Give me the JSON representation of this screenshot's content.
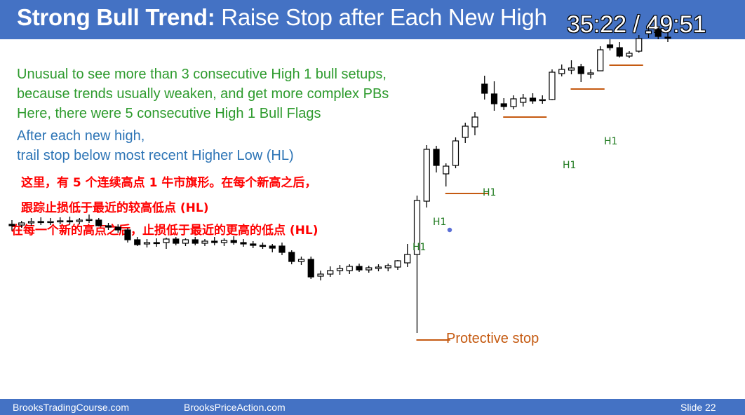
{
  "slide": {
    "title_bold": "Strong Bull Trend:",
    "title_rest": " Raise Stop after Each New High",
    "timer": "35:22 / 49:51",
    "notes_green": [
      "Unusual to see more than 3 consecutive High 1 bull setups,",
      "because trends usually weaken, and get more complex PBs",
      "Here, there were 5 consecutive High 1 Bull Flags"
    ],
    "notes_blue": [
      "After each new high,",
      "trail stop below most recent Higher Low (HL)"
    ],
    "notes_red": [
      "这里，有 5 个连续高点 1 牛市旗形。在每个新高之后，",
      "跟踪止损低于最近的较高低点 (HL)",
      "在每一个新的高点之后，止损低于最近的更高的低点 (HL)"
    ],
    "footer_left": "BrooksTradingCourse.com",
    "footer_mid": "BrooksPriceAction.com",
    "footer_right": "Slide  22"
  },
  "colors": {
    "header": "#4472c4",
    "green_text": "#2e9b2e",
    "blue_text": "#2e75b6",
    "red_text": "#ff0000",
    "stop_line": "#c55a11",
    "label_green": "#1f7a1f"
  },
  "chart_data": {
    "type": "candlestick",
    "axes_shown": false,
    "grid": false,
    "price_range": [
      0,
      500
    ],
    "bars": [
      {
        "o": 226,
        "h": 232,
        "l": 217,
        "c": 224
      },
      {
        "o": 225,
        "h": 231,
        "l": 221,
        "c": 228
      },
      {
        "o": 228,
        "h": 235,
        "l": 224,
        "c": 230
      },
      {
        "o": 230,
        "h": 236,
        "l": 225,
        "c": 229
      },
      {
        "o": 229,
        "h": 235,
        "l": 225,
        "c": 230
      },
      {
        "o": 230,
        "h": 236,
        "l": 226,
        "c": 231
      },
      {
        "o": 231,
        "h": 237,
        "l": 226,
        "c": 230
      },
      {
        "o": 230,
        "h": 235,
        "l": 226,
        "c": 232
      },
      {
        "o": 232,
        "h": 240,
        "l": 228,
        "c": 233
      },
      {
        "o": 232,
        "h": 235,
        "l": 223,
        "c": 224
      },
      {
        "o": 224,
        "h": 228,
        "l": 218,
        "c": 222
      },
      {
        "o": 222,
        "h": 226,
        "l": 214,
        "c": 218
      },
      {
        "o": 218,
        "h": 221,
        "l": 200,
        "c": 204
      },
      {
        "o": 204,
        "h": 208,
        "l": 195,
        "c": 197
      },
      {
        "o": 198,
        "h": 205,
        "l": 193,
        "c": 200
      },
      {
        "o": 200,
        "h": 206,
        "l": 194,
        "c": 199
      },
      {
        "o": 200,
        "h": 207,
        "l": 191,
        "c": 205
      },
      {
        "o": 205,
        "h": 208,
        "l": 196,
        "c": 199
      },
      {
        "o": 199,
        "h": 206,
        "l": 195,
        "c": 204
      },
      {
        "o": 204,
        "h": 208,
        "l": 196,
        "c": 199
      },
      {
        "o": 199,
        "h": 205,
        "l": 195,
        "c": 202
      },
      {
        "o": 202,
        "h": 208,
        "l": 196,
        "c": 200
      },
      {
        "o": 200,
        "h": 206,
        "l": 195,
        "c": 203
      },
      {
        "o": 203,
        "h": 209,
        "l": 197,
        "c": 200
      },
      {
        "o": 200,
        "h": 205,
        "l": 194,
        "c": 198
      },
      {
        "o": 198,
        "h": 202,
        "l": 192,
        "c": 196
      },
      {
        "o": 196,
        "h": 200,
        "l": 191,
        "c": 195
      },
      {
        "o": 195,
        "h": 198,
        "l": 186,
        "c": 192
      },
      {
        "o": 195,
        "h": 200,
        "l": 182,
        "c": 186
      },
      {
        "o": 186,
        "h": 189,
        "l": 169,
        "c": 173
      },
      {
        "o": 173,
        "h": 180,
        "l": 168,
        "c": 176
      },
      {
        "o": 176,
        "h": 180,
        "l": 148,
        "c": 151
      },
      {
        "o": 152,
        "h": 160,
        "l": 146,
        "c": 155
      },
      {
        "o": 155,
        "h": 166,
        "l": 151,
        "c": 160
      },
      {
        "o": 160,
        "h": 168,
        "l": 154,
        "c": 163
      },
      {
        "o": 160,
        "h": 169,
        "l": 155,
        "c": 166
      },
      {
        "o": 166,
        "h": 170,
        "l": 158,
        "c": 161
      },
      {
        "o": 161,
        "h": 167,
        "l": 157,
        "c": 164
      },
      {
        "o": 163,
        "h": 169,
        "l": 159,
        "c": 165
      },
      {
        "o": 164,
        "h": 170,
        "l": 159,
        "c": 167
      },
      {
        "o": 165,
        "h": 175,
        "l": 161,
        "c": 174
      },
      {
        "o": 171,
        "h": 198,
        "l": 165,
        "c": 183
      },
      {
        "o": 183,
        "h": 267,
        "l": 71,
        "c": 260
      },
      {
        "o": 259,
        "h": 339,
        "l": 250,
        "c": 333
      },
      {
        "o": 333,
        "h": 338,
        "l": 300,
        "c": 310
      },
      {
        "o": 298,
        "h": 313,
        "l": 280,
        "c": 309
      },
      {
        "o": 310,
        "h": 350,
        "l": 306,
        "c": 345
      },
      {
        "o": 350,
        "h": 371,
        "l": 342,
        "c": 366
      },
      {
        "o": 365,
        "h": 386,
        "l": 353,
        "c": 379
      },
      {
        "o": 426,
        "h": 438,
        "l": 404,
        "c": 413
      },
      {
        "o": 412,
        "h": 430,
        "l": 388,
        "c": 398
      },
      {
        "o": 398,
        "h": 406,
        "l": 389,
        "c": 394
      },
      {
        "o": 394,
        "h": 410,
        "l": 390,
        "c": 405
      },
      {
        "o": 400,
        "h": 412,
        "l": 394,
        "c": 406
      },
      {
        "o": 406,
        "h": 413,
        "l": 398,
        "c": 402
      },
      {
        "o": 403,
        "h": 410,
        "l": 398,
        "c": 404
      },
      {
        "o": 404,
        "h": 447,
        "l": 403,
        "c": 443
      },
      {
        "o": 441,
        "h": 454,
        "l": 437,
        "c": 447
      },
      {
        "o": 446,
        "h": 460,
        "l": 440,
        "c": 449
      },
      {
        "o": 451,
        "h": 455,
        "l": 429,
        "c": 441
      },
      {
        "o": 440,
        "h": 447,
        "l": 434,
        "c": 442
      },
      {
        "o": 445,
        "h": 480,
        "l": 445,
        "c": 475
      },
      {
        "o": 482,
        "h": 490,
        "l": 474,
        "c": 478
      },
      {
        "o": 478,
        "h": 486,
        "l": 464,
        "c": 466
      },
      {
        "o": 466,
        "h": 473,
        "l": 463,
        "c": 470
      },
      {
        "o": 473,
        "h": 496,
        "l": 471,
        "c": 491
      },
      {
        "o": 498,
        "h": 508,
        "l": 492,
        "c": 502
      },
      {
        "o": 504,
        "h": 507,
        "l": 490,
        "c": 494
      },
      {
        "o": 493,
        "h": 499,
        "l": 486,
        "c": 492
      }
    ],
    "annotations": [
      {
        "text": "H1",
        "at_bar": 43
      },
      {
        "text": "H1",
        "at_bar": 46
      },
      {
        "text": "H1",
        "at_bar": 51
      },
      {
        "text": "H1",
        "at_bar": 58
      },
      {
        "text": "H1",
        "at_bar": 62
      },
      {
        "text": "Protective stop",
        "at_bar": 43
      }
    ],
    "stop_levels": [
      {
        "level": 71,
        "from_bar": 42,
        "to_bar": 45
      },
      {
        "level": 280,
        "from_bar": 45,
        "to_bar": 49
      },
      {
        "level": 389,
        "from_bar": 51,
        "to_bar": 55
      },
      {
        "level": 429,
        "from_bar": 58,
        "to_bar": 61
      },
      {
        "level": 463,
        "from_bar": 62,
        "to_bar": 65
      }
    ]
  }
}
